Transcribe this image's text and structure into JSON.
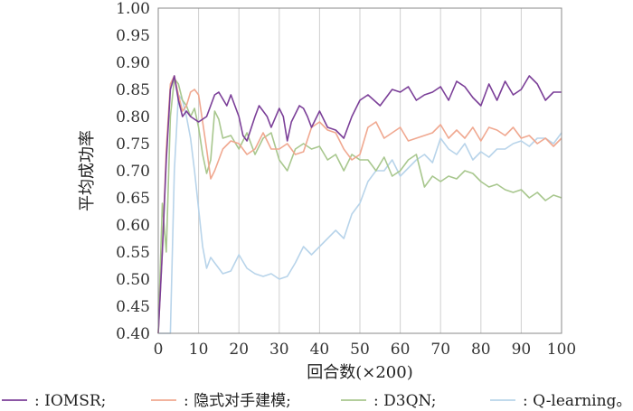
{
  "chart_data": {
    "type": "line",
    "xlabel": "回合数(×200)",
    "ylabel": "平均成功率",
    "xlim": [
      0,
      100
    ],
    "ylim": [
      0.4,
      1.0
    ],
    "x_ticks": [
      0,
      10,
      20,
      30,
      40,
      50,
      60,
      70,
      80,
      90,
      100
    ],
    "y_ticks": [
      "0.40",
      "0.45",
      "0.50",
      "0.55",
      "0.60",
      "0.65",
      "0.70",
      "0.75",
      "0.80",
      "0.85",
      "0.90",
      "0.95",
      "1.00"
    ],
    "grid": "vertical lines at major x ticks",
    "legend_position": "bottom",
    "series": [
      {
        "name": "IOMSR",
        "legend_text": ": IOMSR;",
        "color": "#7b3f98",
        "x": [
          0,
          1,
          2,
          3,
          4,
          5,
          6,
          7,
          8,
          10,
          12,
          14,
          15,
          17,
          18,
          20,
          21,
          22,
          24,
          25,
          26,
          27,
          28,
          30,
          31,
          32,
          33,
          35,
          36,
          37,
          38,
          40,
          42,
          44,
          46,
          48,
          50,
          52,
          55,
          58,
          60,
          62,
          64,
          66,
          68,
          70,
          72,
          74,
          76,
          78,
          80,
          82,
          84,
          86,
          88,
          90,
          92,
          94,
          96,
          98,
          100
        ],
        "y": [
          0.4,
          0.55,
          0.72,
          0.85,
          0.875,
          0.83,
          0.8,
          0.81,
          0.8,
          0.79,
          0.8,
          0.84,
          0.845,
          0.82,
          0.84,
          0.8,
          0.765,
          0.755,
          0.8,
          0.82,
          0.81,
          0.8,
          0.78,
          0.815,
          0.8,
          0.755,
          0.79,
          0.82,
          0.815,
          0.8,
          0.78,
          0.81,
          0.78,
          0.775,
          0.76,
          0.8,
          0.83,
          0.84,
          0.82,
          0.85,
          0.845,
          0.855,
          0.83,
          0.84,
          0.845,
          0.855,
          0.83,
          0.865,
          0.855,
          0.835,
          0.82,
          0.86,
          0.83,
          0.865,
          0.84,
          0.85,
          0.875,
          0.86,
          0.83,
          0.845,
          0.845
        ]
      },
      {
        "name": "隐式对手建模",
        "legend_text": ": 隐式对手建模;",
        "color": "#f0a890",
        "x": [
          0,
          1,
          2,
          3,
          4,
          5,
          6,
          7,
          8,
          9,
          10,
          11,
          12,
          13,
          14,
          16,
          18,
          20,
          22,
          24,
          26,
          28,
          30,
          32,
          34,
          36,
          38,
          40,
          42,
          44,
          46,
          48,
          50,
          52,
          54,
          56,
          58,
          60,
          62,
          64,
          66,
          68,
          70,
          72,
          74,
          76,
          78,
          80,
          82,
          84,
          86,
          88,
          90,
          92,
          94,
          96,
          98,
          100
        ],
        "y": [
          0.4,
          0.55,
          0.74,
          0.86,
          0.875,
          0.84,
          0.81,
          0.82,
          0.845,
          0.85,
          0.84,
          0.79,
          0.74,
          0.685,
          0.7,
          0.74,
          0.755,
          0.75,
          0.73,
          0.74,
          0.77,
          0.74,
          0.74,
          0.75,
          0.73,
          0.735,
          0.78,
          0.79,
          0.775,
          0.77,
          0.74,
          0.72,
          0.73,
          0.78,
          0.79,
          0.76,
          0.77,
          0.78,
          0.755,
          0.76,
          0.765,
          0.77,
          0.785,
          0.76,
          0.775,
          0.76,
          0.78,
          0.755,
          0.78,
          0.775,
          0.765,
          0.78,
          0.76,
          0.765,
          0.75,
          0.76,
          0.745,
          0.76
        ]
      },
      {
        "name": "D3QN",
        "legend_text": ": D3QN;",
        "color": "#a8c78e",
        "x": [
          0,
          1,
          2,
          3,
          4,
          5,
          6,
          7,
          8,
          9,
          10,
          11,
          12,
          13,
          14,
          15,
          16,
          18,
          20,
          22,
          24,
          26,
          28,
          30,
          32,
          34,
          36,
          38,
          40,
          42,
          44,
          46,
          48,
          50,
          52,
          54,
          56,
          58,
          60,
          62,
          64,
          66,
          68,
          70,
          72,
          74,
          76,
          78,
          80,
          82,
          84,
          86,
          88,
          90,
          92,
          94,
          96,
          98,
          100
        ],
        "y": [
          0.4,
          0.64,
          0.55,
          0.8,
          0.87,
          0.86,
          0.83,
          0.82,
          0.8,
          0.815,
          0.78,
          0.73,
          0.695,
          0.72,
          0.81,
          0.795,
          0.76,
          0.765,
          0.74,
          0.77,
          0.73,
          0.76,
          0.77,
          0.72,
          0.7,
          0.74,
          0.75,
          0.74,
          0.745,
          0.72,
          0.73,
          0.7,
          0.73,
          0.72,
          0.72,
          0.7,
          0.725,
          0.69,
          0.7,
          0.72,
          0.73,
          0.67,
          0.69,
          0.68,
          0.69,
          0.685,
          0.7,
          0.695,
          0.68,
          0.67,
          0.675,
          0.665,
          0.66,
          0.665,
          0.65,
          0.66,
          0.645,
          0.655,
          0.65
        ]
      },
      {
        "name": "Q-learning",
        "legend_text": ": Q-learning。",
        "color": "#b8d4ea",
        "x": [
          0,
          1,
          2,
          3,
          4,
          5,
          6,
          7,
          8,
          9,
          10,
          11,
          12,
          13,
          14,
          16,
          18,
          20,
          22,
          24,
          26,
          28,
          30,
          32,
          34,
          36,
          38,
          40,
          42,
          44,
          46,
          48,
          50,
          52,
          54,
          56,
          58,
          60,
          62,
          64,
          66,
          68,
          70,
          72,
          74,
          76,
          78,
          80,
          82,
          84,
          86,
          88,
          90,
          92,
          94,
          96,
          98,
          100
        ],
        "y": [
          0.4,
          0.4,
          0.4,
          0.4,
          0.7,
          0.84,
          0.83,
          0.8,
          0.76,
          0.7,
          0.63,
          0.56,
          0.52,
          0.54,
          0.53,
          0.51,
          0.515,
          0.545,
          0.52,
          0.51,
          0.505,
          0.51,
          0.5,
          0.505,
          0.53,
          0.56,
          0.545,
          0.56,
          0.575,
          0.59,
          0.575,
          0.62,
          0.64,
          0.68,
          0.7,
          0.7,
          0.72,
          0.69,
          0.705,
          0.72,
          0.73,
          0.715,
          0.76,
          0.74,
          0.73,
          0.75,
          0.72,
          0.735,
          0.725,
          0.74,
          0.74,
          0.75,
          0.755,
          0.745,
          0.76,
          0.76,
          0.75,
          0.77
        ]
      }
    ]
  }
}
